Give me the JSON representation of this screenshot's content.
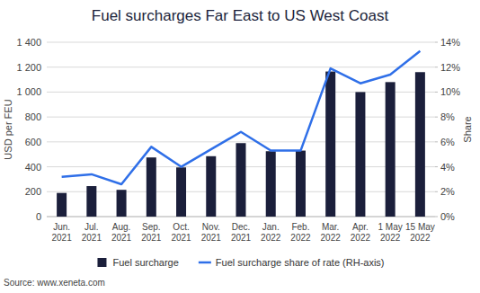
{
  "chart_data": {
    "type": "bar",
    "title": "Fuel surcharges Far East to US West Coast",
    "y_label": "USD per FEU",
    "y2_label": "Share",
    "annotations": [
      "Source: www.xeneta.com"
    ],
    "categories": [
      "Jun. 2021",
      "Jul. 2021",
      "Aug. 2021",
      "Sep. 2021",
      "Oct. 2021",
      "Nov. 2021",
      "Dec. 2021",
      "Jan. 2022",
      "Feb. 2022",
      "Mar. 2022",
      "Apr. 2022",
      "1 May 2022",
      "15 May 2022"
    ],
    "series": [
      {
        "name": "Fuel surcharge",
        "type": "bar",
        "color": "#1b1f3b",
        "values": [
          190,
          245,
          215,
          475,
          395,
          485,
          590,
          525,
          530,
          1165,
          1000,
          1080,
          1160
        ]
      },
      {
        "name": "Fuel surcharge share of rate (RH-axis)",
        "type": "line",
        "axis": "y2",
        "color": "#2f6fe8",
        "values": [
          3.2,
          3.4,
          2.6,
          5.6,
          4.0,
          5.4,
          6.8,
          5.3,
          5.3,
          11.9,
          10.7,
          11.4,
          13.3
        ]
      }
    ],
    "ylim": [
      0,
      1400
    ],
    "yticks": [
      0,
      200,
      400,
      600,
      800,
      {
        "value": 1000,
        "label": "1 000"
      },
      {
        "value": 1200,
        "label": "1 200"
      },
      {
        "value": 1400,
        "label": "1 400"
      }
    ],
    "y2lim": [
      0,
      14
    ],
    "y2ticks": [
      {
        "value": 0,
        "label": "0%"
      },
      {
        "value": 2,
        "label": "2%"
      },
      {
        "value": 4,
        "label": "4%"
      },
      {
        "value": 6,
        "label": "6%"
      },
      {
        "value": 8,
        "label": "8%"
      },
      {
        "value": 10,
        "label": "10%"
      },
      {
        "value": 12,
        "label": "12%"
      },
      {
        "value": 14,
        "label": "14%"
      }
    ],
    "grid": true,
    "legend": "bottom"
  }
}
